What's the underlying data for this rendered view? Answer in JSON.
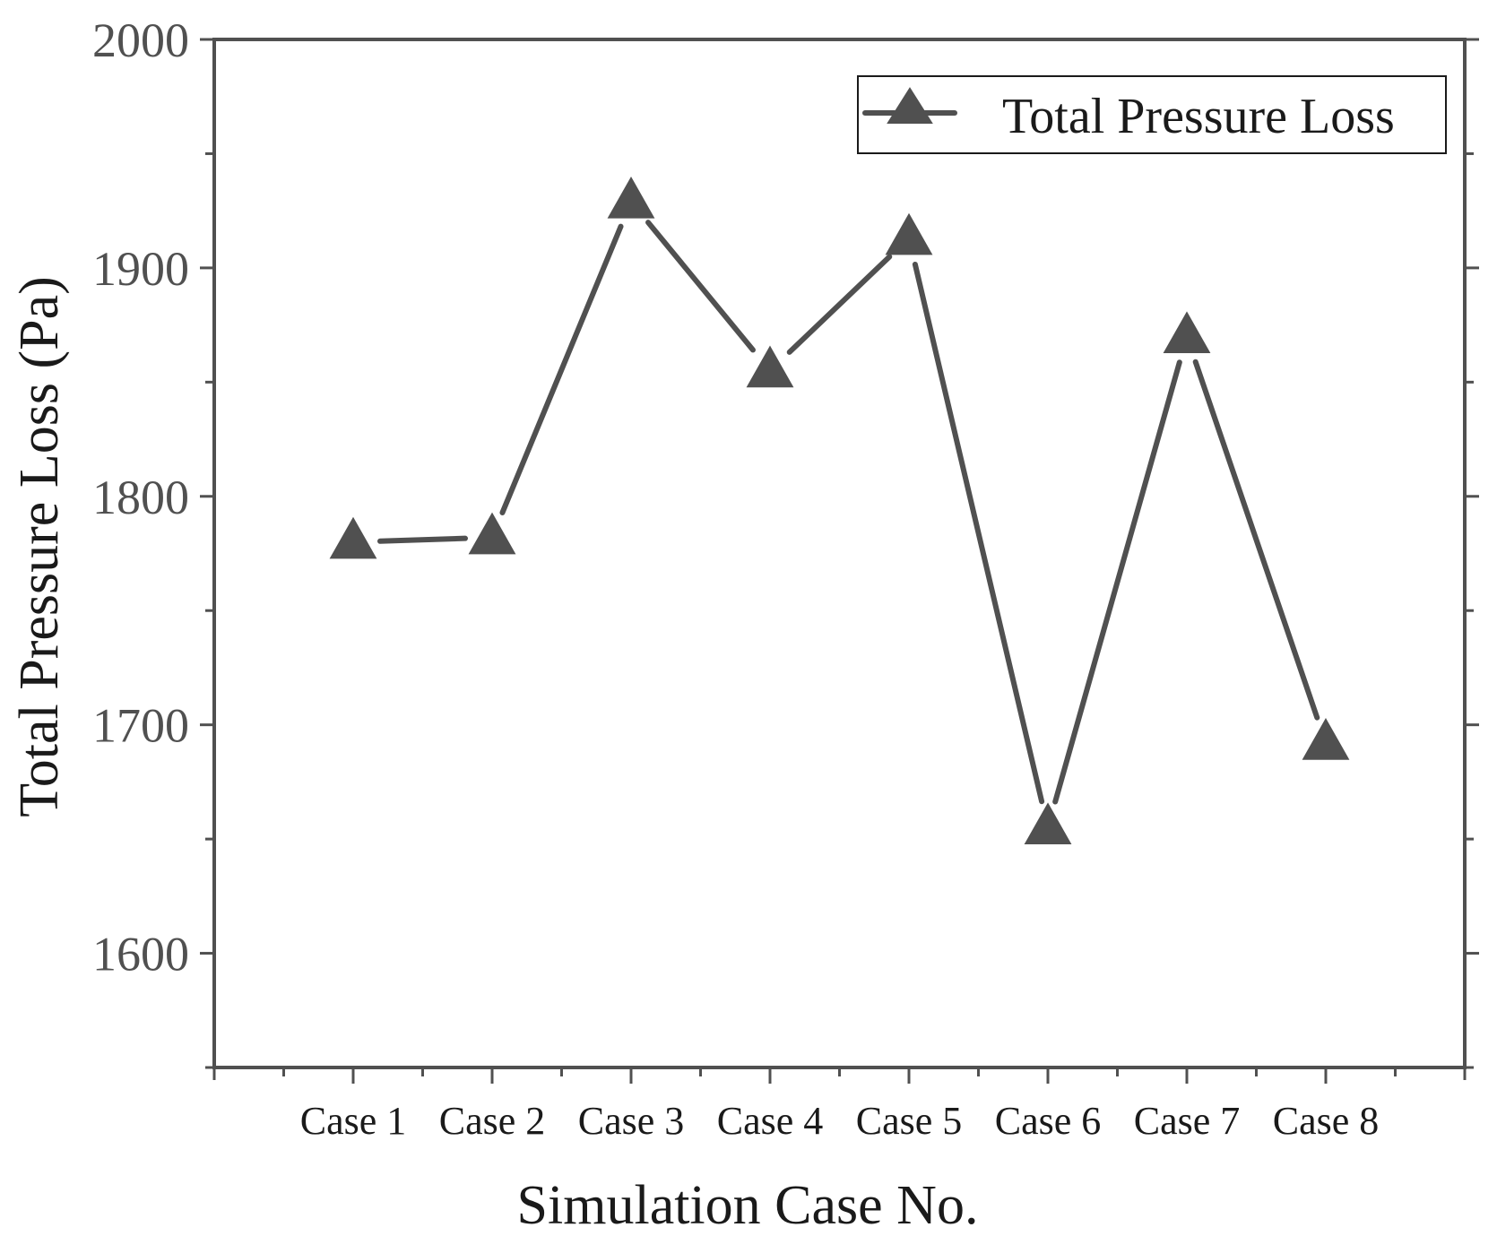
{
  "chart_data": {
    "type": "line",
    "title": "",
    "xlabel": "Simulation Case No.",
    "ylabel": "Total Pressure Loss (Pa)",
    "categories": [
      "Case 1",
      "Case 2",
      "Case 3",
      "Case 4",
      "Case 5",
      "Case 6",
      "Case 7",
      "Case 8"
    ],
    "series": [
      {
        "name": "Total Pressure Loss",
        "marker": "triangle",
        "color": "#505050",
        "values": [
          1780,
          1782,
          1929,
          1855,
          1913,
          1655,
          1870,
          1692
        ]
      }
    ],
    "ylim": [
      1550,
      2000
    ],
    "yticks": [
      1600,
      1700,
      1800,
      1900,
      2000
    ],
    "y_minor_step": 50,
    "grid": false,
    "legend_position": "top-right"
  },
  "colors": {
    "axis": "#505050",
    "series": "#505050",
    "background": "#ffffff"
  }
}
